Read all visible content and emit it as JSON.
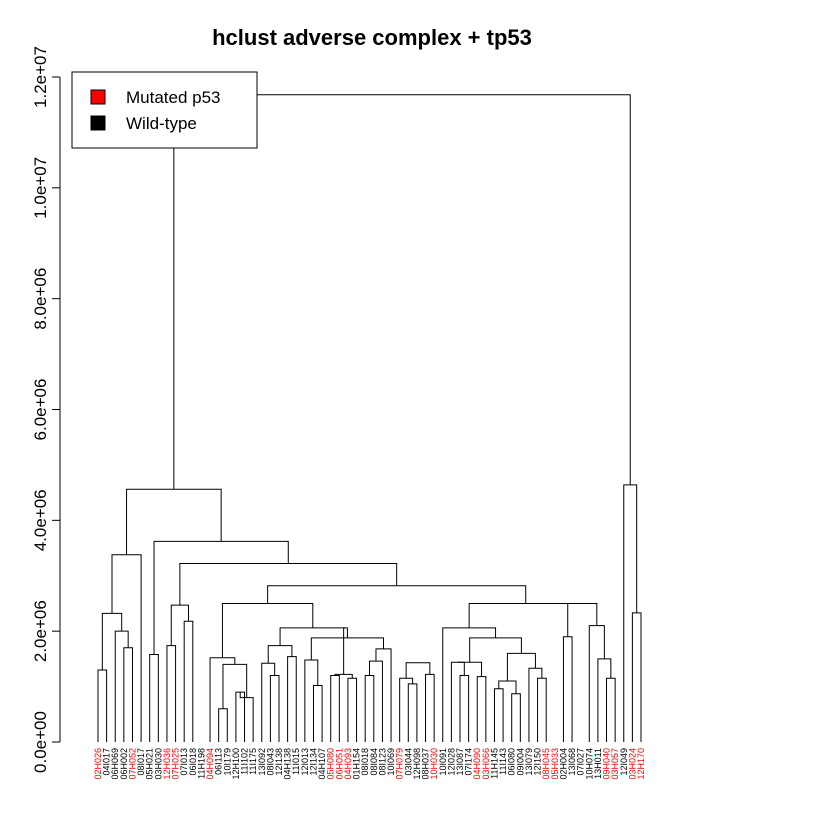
{
  "chart_data": {
    "type": "dendrogram",
    "title": "hclust adverse complex + tp53",
    "xlabel": "",
    "ylabel": "",
    "ylim": [
      0,
      12000000
    ],
    "y_ticks": [
      0,
      2000000,
      4000000,
      6000000,
      8000000,
      10000000,
      12000000
    ],
    "y_tick_labels": [
      "0.0e+00",
      "2.0e+06",
      "4.0e+06",
      "6.0e+06",
      "8.0e+06",
      "1.0e+07",
      "1.2e+07"
    ],
    "legend": {
      "position": "top-left",
      "entries": [
        {
          "label": "Mutated p53",
          "color": "#ff0000"
        },
        {
          "label": "Wild-type",
          "color": "#000000"
        }
      ]
    },
    "colors": {
      "mutated": "#ff0000",
      "wild_type": "#000000"
    },
    "leaves": [
      {
        "label": "02H026",
        "mutated": true
      },
      {
        "label": "04I017",
        "mutated": false
      },
      {
        "label": "06H069",
        "mutated": false
      },
      {
        "label": "06H002",
        "mutated": false
      },
      {
        "label": "07H052",
        "mutated": true
      },
      {
        "label": "08I017",
        "mutated": false
      },
      {
        "label": "05H021",
        "mutated": false
      },
      {
        "label": "03H030",
        "mutated": false
      },
      {
        "label": "12H036",
        "mutated": true
      },
      {
        "label": "07H025",
        "mutated": true
      },
      {
        "label": "07I013",
        "mutated": false
      },
      {
        "label": "06I018",
        "mutated": false
      },
      {
        "label": "11H198",
        "mutated": false
      },
      {
        "label": "04H094",
        "mutated": true
      },
      {
        "label": "06I113",
        "mutated": false
      },
      {
        "label": "10I179",
        "mutated": false
      },
      {
        "label": "12H100",
        "mutated": false
      },
      {
        "label": "11I102",
        "mutated": false
      },
      {
        "label": "11I175",
        "mutated": false
      },
      {
        "label": "13I092",
        "mutated": false
      },
      {
        "label": "08I043",
        "mutated": false
      },
      {
        "label": "12I138",
        "mutated": false
      },
      {
        "label": "04H138",
        "mutated": false
      },
      {
        "label": "11I015",
        "mutated": false
      },
      {
        "label": "12I013",
        "mutated": false
      },
      {
        "label": "12I134",
        "mutated": false
      },
      {
        "label": "04H107",
        "mutated": false
      },
      {
        "label": "05H080",
        "mutated": true
      },
      {
        "label": "06H051",
        "mutated": true
      },
      {
        "label": "04H093",
        "mutated": true
      },
      {
        "label": "01H154",
        "mutated": false
      },
      {
        "label": "08I018",
        "mutated": false
      },
      {
        "label": "08I084",
        "mutated": false
      },
      {
        "label": "08I123",
        "mutated": false
      },
      {
        "label": "10I069",
        "mutated": false
      },
      {
        "label": "07H079",
        "mutated": true
      },
      {
        "label": "03I044",
        "mutated": false
      },
      {
        "label": "12H098",
        "mutated": false
      },
      {
        "label": "08H037",
        "mutated": false
      },
      {
        "label": "10H030",
        "mutated": true
      },
      {
        "label": "10I091",
        "mutated": false
      },
      {
        "label": "12I028",
        "mutated": false
      },
      {
        "label": "13I087",
        "mutated": false
      },
      {
        "label": "07I174",
        "mutated": false
      },
      {
        "label": "04H090",
        "mutated": true
      },
      {
        "label": "03H066",
        "mutated": true
      },
      {
        "label": "11H145",
        "mutated": false
      },
      {
        "label": "11I143",
        "mutated": false
      },
      {
        "label": "06I080",
        "mutated": false
      },
      {
        "label": "09I004",
        "mutated": false
      },
      {
        "label": "13I079",
        "mutated": false
      },
      {
        "label": "12I150",
        "mutated": false
      },
      {
        "label": "08H045",
        "mutated": true
      },
      {
        "label": "05H033",
        "mutated": true
      },
      {
        "label": "02H004",
        "mutated": false
      },
      {
        "label": "13I068",
        "mutated": false
      },
      {
        "label": "07I027",
        "mutated": false
      },
      {
        "label": "10H074",
        "mutated": false
      },
      {
        "label": "13H011",
        "mutated": false
      },
      {
        "label": "09H040",
        "mutated": true
      },
      {
        "label": "03H057",
        "mutated": true
      },
      {
        "label": "12I049",
        "mutated": false
      },
      {
        "label": "03H024",
        "mutated": true
      },
      {
        "label": "12H170",
        "mutated": true
      }
    ],
    "merges": [
      {
        "left": 0,
        "right": 1,
        "height": 1300000
      },
      {
        "left": 3,
        "right": 4,
        "height": 1700000
      },
      {
        "left": 2,
        "right": -2,
        "height": 2000000
      },
      {
        "left": -1,
        "right": -3,
        "height": 2320000
      },
      {
        "left": 5,
        "right": -4,
        "height": 3380000
      },
      {
        "left": 6,
        "right": 7,
        "height": 1580000
      },
      {
        "left": 8,
        "right": 9,
        "height": 1740000
      },
      {
        "left": 10,
        "right": 11,
        "height": 2180000
      },
      {
        "left": -7,
        "right": -8,
        "height": 2470000
      },
      {
        "left": 14,
        "right": 15,
        "height": 600000
      },
      {
        "left": 16,
        "right": 17,
        "height": 900000
      },
      {
        "left": 18,
        "right": -11,
        "height": 800000
      },
      {
        "left": -10,
        "right": -12,
        "height": 1400000
      },
      {
        "left": 13,
        "right": -13,
        "height": 1520000
      },
      {
        "left": 20,
        "right": 21,
        "height": 1200000
      },
      {
        "left": 19,
        "right": -15,
        "height": 1420000
      },
      {
        "left": 22,
        "right": 23,
        "height": 1540000
      },
      {
        "left": -16,
        "right": -17,
        "height": 1740000
      },
      {
        "left": 25,
        "right": 26,
        "height": 1020000
      },
      {
        "left": 27,
        "right": 28,
        "height": 1200000
      },
      {
        "left": 29,
        "right": 30,
        "height": 1150000
      },
      {
        "left": -20,
        "right": -21,
        "height": 1220000
      },
      {
        "left": 24,
        "right": -19,
        "height": 1480000
      },
      {
        "left": 31,
        "right": 32,
        "height": 1200000
      },
      {
        "left": 33,
        "right": -24,
        "height": 1460000
      },
      {
        "left": 36,
        "right": 37,
        "height": 1050000
      },
      {
        "left": 35,
        "right": -26,
        "height": 1150000
      },
      {
        "left": 38,
        "right": 39,
        "height": 1220000
      },
      {
        "left": -27,
        "right": -28,
        "height": 1430000
      },
      {
        "left": 34,
        "right": -25,
        "height": 1680000
      },
      {
        "left": -23,
        "right": -30,
        "height": 1880000
      },
      {
        "left": -22,
        "right": -31,
        "height": 2060000
      },
      {
        "left": -18,
        "right": -32,
        "height": 2060000
      },
      {
        "left": -14,
        "right": -33,
        "height": 2500000
      },
      {
        "left": 42,
        "right": 43,
        "height": 1200000
      },
      {
        "left": 41,
        "right": -35,
        "height": 1440000
      },
      {
        "left": 46,
        "right": 47,
        "height": 960000
      },
      {
        "left": 48,
        "right": 49,
        "height": 870000
      },
      {
        "left": -37,
        "right": -38,
        "height": 1100000
      },
      {
        "left": 51,
        "right": 52,
        "height": 1150000
      },
      {
        "left": 50,
        "right": -40,
        "height": 1330000
      },
      {
        "left": -39,
        "right": -41,
        "height": 1600000
      },
      {
        "left": 44,
        "right": 45,
        "height": 1180000
      },
      {
        "left": -36,
        "right": -43,
        "height": 1440000
      },
      {
        "left": -44,
        "right": -42,
        "height": 1880000
      },
      {
        "left": 40,
        "right": -45,
        "height": 2060000
      },
      {
        "left": 54,
        "right": 55,
        "height": 1900000
      },
      {
        "left": 59,
        "right": 60,
        "height": 1150000
      },
      {
        "left": 58,
        "right": -48,
        "height": 1500000
      },
      {
        "left": 57,
        "right": -49,
        "height": 2100000
      },
      {
        "left": -47,
        "right": -50,
        "height": 2500000
      },
      {
        "left": -46,
        "right": -51,
        "height": 2500000
      },
      {
        "left": -34,
        "right": -52,
        "height": 2820000
      },
      {
        "left": -9,
        "right": -53,
        "height": 3220000
      },
      {
        "left": -6,
        "right": -54,
        "height": 3620000
      },
      {
        "left": -5,
        "right": -55,
        "height": 4560000
      },
      {
        "left": 62,
        "right": 63,
        "height": 2330000
      },
      {
        "left": 61,
        "right": -57,
        "height": 4640000
      },
      {
        "left": -56,
        "right": -58,
        "height": 11680000
      }
    ]
  }
}
